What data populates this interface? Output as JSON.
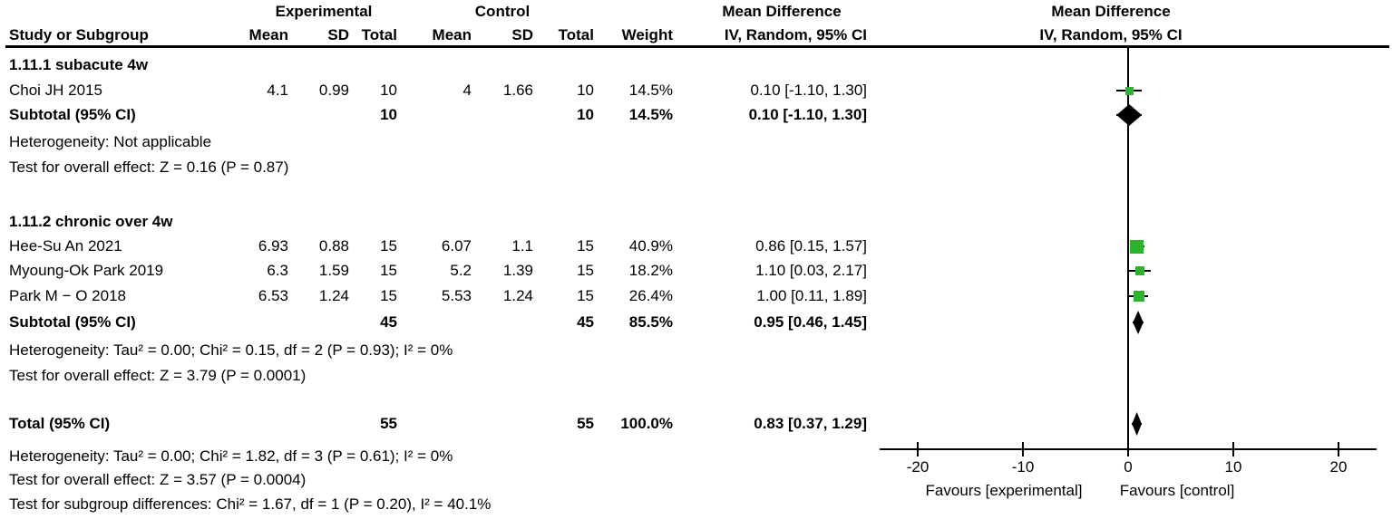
{
  "header": {
    "experimental": "Experimental",
    "control": "Control",
    "md_left": "Mean Difference",
    "md_right": "Mean Difference",
    "study": "Study or Subgroup",
    "mean": "Mean",
    "sd": "SD",
    "total": "Total",
    "weight": "Weight",
    "ci": "IV, Random, 95% CI",
    "ci_right": "IV, Random, 95% CI"
  },
  "groups": [
    {
      "label": "1.11.1 subacute 4w",
      "studies": [
        {
          "name": "Choi JH 2015",
          "mean_e": "4.1",
          "sd_e": "0.99",
          "total_e": "10",
          "mean_c": "4",
          "sd_c": "1.66",
          "total_c": "10",
          "weight": "14.5%",
          "ci": "0.10 [-1.10, 1.30]"
        }
      ],
      "subtotal": {
        "label": "Subtotal (95% CI)",
        "total_e": "10",
        "total_c": "10",
        "weight": "14.5%",
        "ci": "0.10 [-1.10, 1.30]"
      },
      "heterogeneity": "Heterogeneity: Not applicable",
      "overall": "Test for overall effect: Z = 0.16 (P = 0.87)"
    },
    {
      "label": "1.11.2 chronic over 4w",
      "studies": [
        {
          "name": "Hee-Su An 2021",
          "mean_e": "6.93",
          "sd_e": "0.88",
          "total_e": "15",
          "mean_c": "6.07",
          "sd_c": "1.1",
          "total_c": "15",
          "weight": "40.9%",
          "ci": "0.86 [0.15, 1.57]"
        },
        {
          "name": "Myoung-Ok Park 2019",
          "mean_e": "6.3",
          "sd_e": "1.59",
          "total_e": "15",
          "mean_c": "5.2",
          "sd_c": "1.39",
          "total_c": "15",
          "weight": "18.2%",
          "ci": "1.10 [0.03, 2.17]"
        },
        {
          "name": "Park M − O 2018",
          "mean_e": "6.53",
          "sd_e": "1.24",
          "total_e": "15",
          "mean_c": "5.53",
          "sd_c": "1.24",
          "total_c": "15",
          "weight": "26.4%",
          "ci": "1.00 [0.11, 1.89]"
        }
      ],
      "subtotal": {
        "label": "Subtotal (95% CI)",
        "total_e": "45",
        "total_c": "45",
        "weight": "85.5%",
        "ci": "0.95 [0.46, 1.45]"
      },
      "heterogeneity": "Heterogeneity: Tau² = 0.00; Chi² = 0.15, df = 2 (P = 0.93); I² = 0%",
      "overall": "Test for overall effect: Z = 3.79 (P = 0.0001)"
    }
  ],
  "total": {
    "label": "Total (95% CI)",
    "total_e": "55",
    "total_c": "55",
    "weight": "100.0%",
    "ci": "0.83 [0.37, 1.29]"
  },
  "footnotes": {
    "heterogeneity": "Heterogeneity: Tau² = 0.00; Chi² = 1.82, df = 3 (P = 0.61); I² = 0%",
    "overall": "Test for overall effect: Z = 3.57 (P = 0.0004)",
    "subgroup_diff": "Test for subgroup differences: Chi² = 1.67, df = 1 (P = 0.20), I² = 40.1%"
  },
  "axis": {
    "tick_labels": [
      "-20",
      "-10",
      "0",
      "10",
      "20"
    ],
    "favours_left": "Favours [experimental]",
    "favours_right": "Favours [control]"
  },
  "colors": {
    "marker_green": "#2cb52c",
    "diamond_black": "#000000",
    "line_black": "#000000"
  },
  "chart_data": {
    "type": "forest",
    "title": "Mean Difference",
    "effect_measure": "IV, Random, 95% CI",
    "xlim": [
      -23.6,
      23.6
    ],
    "ticks": [
      -20,
      -10,
      0,
      10,
      20
    ],
    "markers": [
      {
        "id": "choi",
        "label": "Choi JH 2015",
        "type": "square",
        "md": 0.1,
        "lo": -1.1,
        "hi": 1.3,
        "weight_pct": 14.5
      },
      {
        "id": "sub1",
        "label": "Subtotal subacute 4w",
        "type": "diamond",
        "md": 0.1,
        "lo": -1.1,
        "hi": 1.3
      },
      {
        "id": "hee",
        "label": "Hee-Su An 2021",
        "type": "square",
        "md": 0.86,
        "lo": 0.15,
        "hi": 1.57,
        "weight_pct": 40.9
      },
      {
        "id": "myo",
        "label": "Myoung-Ok Park 2019",
        "type": "square",
        "md": 1.1,
        "lo": 0.03,
        "hi": 2.17,
        "weight_pct": 18.2
      },
      {
        "id": "park",
        "label": "Park M − O 2018",
        "type": "square",
        "md": 1.0,
        "lo": 0.11,
        "hi": 1.89,
        "weight_pct": 26.4
      },
      {
        "id": "sub2",
        "label": "Subtotal chronic over 4w",
        "type": "diamond",
        "md": 0.95,
        "lo": 0.46,
        "hi": 1.45
      },
      {
        "id": "total",
        "label": "Total",
        "type": "diamond",
        "md": 0.83,
        "lo": 0.37,
        "hi": 1.29
      }
    ]
  }
}
